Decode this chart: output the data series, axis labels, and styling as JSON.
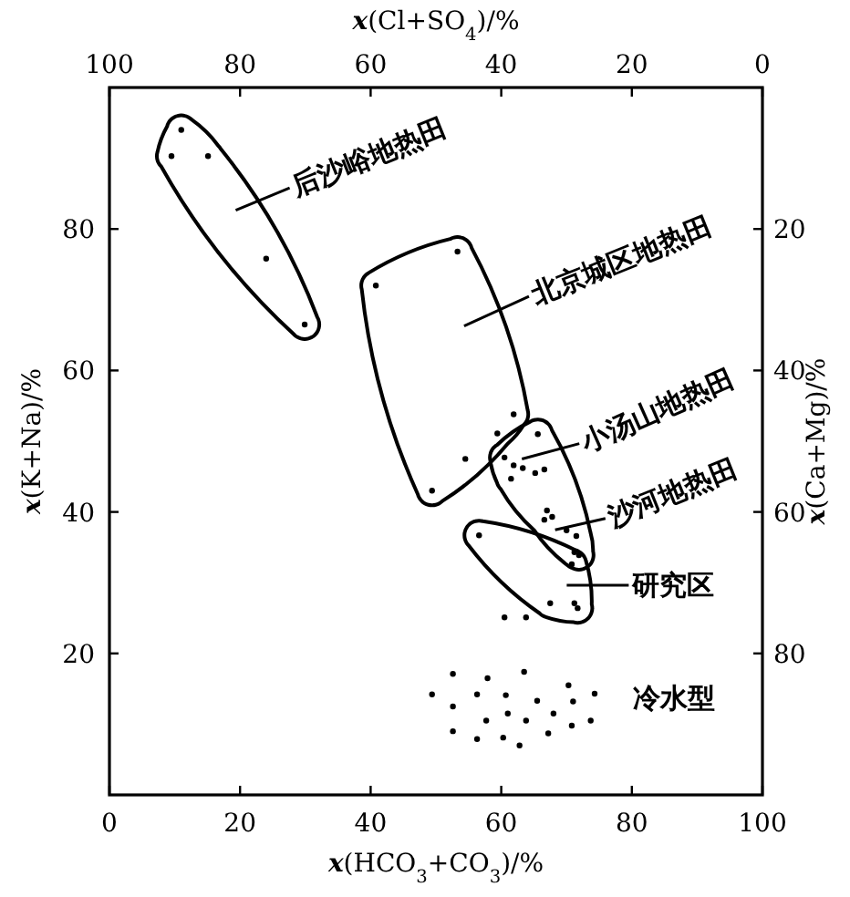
{
  "chart_data": {
    "type": "scatter",
    "xlabel": "*x*(HCO$_{3}$+CO$_{3}$)/%",
    "ylabel": "*x*(K+Na)/%",
    "x2label": "*x*(Cl+SO$_{4}$)/%",
    "y2label": "*x*(Ca+Mg)/%",
    "xlim": [
      0,
      100
    ],
    "xticks": [
      0,
      20,
      40,
      60,
      80,
      100
    ],
    "ylim": [
      0,
      100
    ],
    "yticks": [
      20,
      40,
      60,
      80
    ],
    "x2lim": [
      100,
      0
    ],
    "x2ticks": [
      100,
      80,
      60,
      40,
      20,
      0
    ],
    "y2lim": [
      100,
      0
    ],
    "y2ticks": [
      20,
      40,
      60,
      80
    ],
    "marker": "circle",
    "series": [
      {
        "color": "#000000",
        "x": [
          11.0,
          9.5,
          15.1,
          24.0,
          29.9
        ],
        "values": [
          94.0,
          90.3,
          90.3,
          75.8,
          66.5
        ]
      },
      {
        "color": "#000000",
        "x": [
          53.3,
          40.8,
          61.9,
          59.4,
          54.5,
          49.4
        ],
        "values": [
          76.8,
          72.0,
          53.8,
          51.1,
          47.5,
          43.0
        ]
      },
      {
        "color": "#000000",
        "x": [
          65.6,
          60.5,
          61.9,
          63.3,
          65.2,
          66.6,
          61.5,
          67.0,
          67.8,
          66.6,
          70.0,
          71.5,
          71.2,
          71.9
        ],
        "values": [
          51.0,
          47.7,
          46.6,
          46.2,
          45.5,
          46.0,
          44.7,
          40.2,
          39.3,
          38.9,
          37.4,
          36.6,
          34.3,
          33.9
        ]
      },
      {
        "color": "#000000",
        "x": [
          56.6,
          67.5,
          71.2,
          71.7,
          70.8
        ],
        "values": [
          36.7,
          27.1,
          27.1,
          26.4,
          32.6
        ]
      },
      {
        "color": "#000000",
        "x": [
          60.5,
          63.8,
          52.6,
          57.9,
          63.5,
          49.4,
          56.3,
          60.7,
          65.5,
          70.3,
          74.3,
          71.0,
          52.6,
          61.0,
          68.0,
          57.7,
          63.8,
          73.7,
          70.8,
          52.6,
          67.2,
          56.3,
          60.3,
          62.8
        ],
        "values": [
          25.1,
          25.1,
          17.1,
          16.5,
          17.4,
          14.2,
          14.2,
          14.1,
          13.3,
          15.5,
          14.3,
          13.2,
          12.5,
          11.5,
          11.5,
          10.5,
          10.5,
          10.5,
          9.8,
          9.0,
          8.7,
          7.9,
          8.1,
          7.0
        ]
      }
    ],
    "annotations": [
      "后沙峪地热田",
      "北京城区地热田",
      "小汤山地热田",
      "沙河地热田",
      "研究区",
      "冷水型"
    ]
  }
}
